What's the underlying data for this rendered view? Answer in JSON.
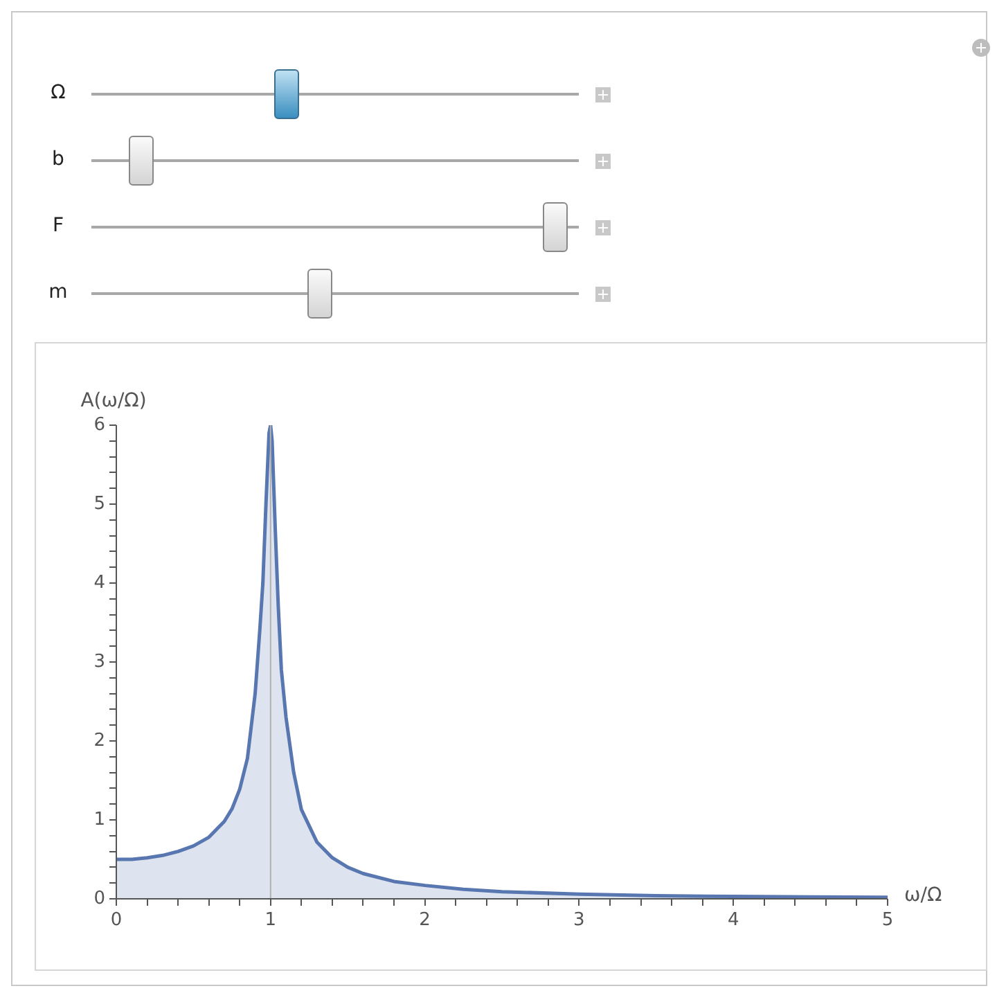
{
  "chart_data": {
    "type": "area",
    "xlabel": "ω/Ω",
    "ylabel": "A(ω/Ω)",
    "annotations": [
      "Ω",
      "b",
      "F",
      "m"
    ],
    "series": [
      {
        "color": "#5877b0",
        "x": [
          0,
          0.1,
          0.2,
          0.3,
          0.4,
          0.5,
          0.6,
          0.7,
          0.75,
          0.8,
          0.85,
          0.9,
          0.93,
          0.95,
          0.97,
          0.99,
          1,
          1.01,
          1.03,
          1.05,
          1.07,
          1.1,
          1.15,
          1.2,
          1.3,
          1.4,
          1.5,
          1.6,
          1.8,
          2,
          2.25,
          2.5,
          3,
          3.5,
          4,
          4.5,
          5
        ],
        "values": [
          0.5,
          0.5,
          0.52,
          0.55,
          0.6,
          0.67,
          0.78,
          0.98,
          1.14,
          1.39,
          1.78,
          2.6,
          3.4,
          4.0,
          5.0,
          5.9,
          6.0,
          5.8,
          4.7,
          3.7,
          2.9,
          2.3,
          1.6,
          1.13,
          0.72,
          0.52,
          0.4,
          0.32,
          0.22,
          0.17,
          0.12,
          0.09,
          0.06,
          0.04,
          0.03,
          0.025,
          0.02
        ]
      }
    ],
    "xlim": [
      0,
      5
    ],
    "ylim": [
      0,
      6
    ],
    "xticks": [
      0,
      {
        "value": 0.2,
        "label": null
      },
      {
        "value": 0.4,
        "label": null
      },
      {
        "value": 0.6,
        "label": null
      },
      {
        "value": 0.8,
        "label": null
      },
      1,
      {
        "value": 1.2,
        "label": null
      },
      {
        "value": 1.4,
        "label": null
      },
      {
        "value": 1.6,
        "label": null
      },
      {
        "value": 1.8,
        "label": null
      },
      2,
      {
        "value": 2.2,
        "label": null
      },
      {
        "value": 2.4,
        "label": null
      },
      {
        "value": 2.6,
        "label": null
      },
      {
        "value": 2.8,
        "label": null
      },
      3,
      {
        "value": 3.2,
        "label": null
      },
      {
        "value": 3.4,
        "label": null
      },
      {
        "value": 3.6,
        "label": null
      },
      {
        "value": 3.8,
        "label": null
      },
      4,
      {
        "value": 4.2,
        "label": null
      },
      {
        "value": 4.4,
        "label": null
      },
      {
        "value": 4.6,
        "label": null
      },
      {
        "value": 4.8,
        "label": null
      },
      5
    ],
    "yticks": [
      0,
      {
        "value": 0.2,
        "label": null
      },
      {
        "value": 0.4,
        "label": null
      },
      {
        "value": 0.6,
        "label": null
      },
      {
        "value": 0.8,
        "label": null
      },
      1,
      {
        "value": 1.2,
        "label": null
      },
      {
        "value": 1.4,
        "label": null
      },
      {
        "value": 1.6,
        "label": null
      },
      {
        "value": 1.8,
        "label": null
      },
      2,
      {
        "value": 2.2,
        "label": null
      },
      {
        "value": 2.4,
        "label": null
      },
      {
        "value": 2.6,
        "label": null
      },
      {
        "value": 2.8,
        "label": null
      },
      3,
      {
        "value": 3.2,
        "label": null
      },
      {
        "value": 3.4,
        "label": null
      },
      {
        "value": 3.6,
        "label": null
      },
      {
        "value": 3.8,
        "label": null
      },
      4,
      {
        "value": 4.2,
        "label": null
      },
      {
        "value": 4.4,
        "label": null
      },
      {
        "value": 4.6,
        "label": null
      },
      {
        "value": 4.8,
        "label": null
      },
      5,
      {
        "value": 5.2,
        "label": null
      },
      {
        "value": 5.4,
        "label": null
      },
      {
        "value": 5.6,
        "label": null
      },
      {
        "value": 5.8,
        "label": null
      },
      6
    ],
    "ref_lines": [
      {
        "axis": "x",
        "value": 1,
        "color": "#b0b0b0"
      }
    ],
    "grid": false,
    "legend": false,
    "marker": "none",
    "line_style": "solid"
  }
}
